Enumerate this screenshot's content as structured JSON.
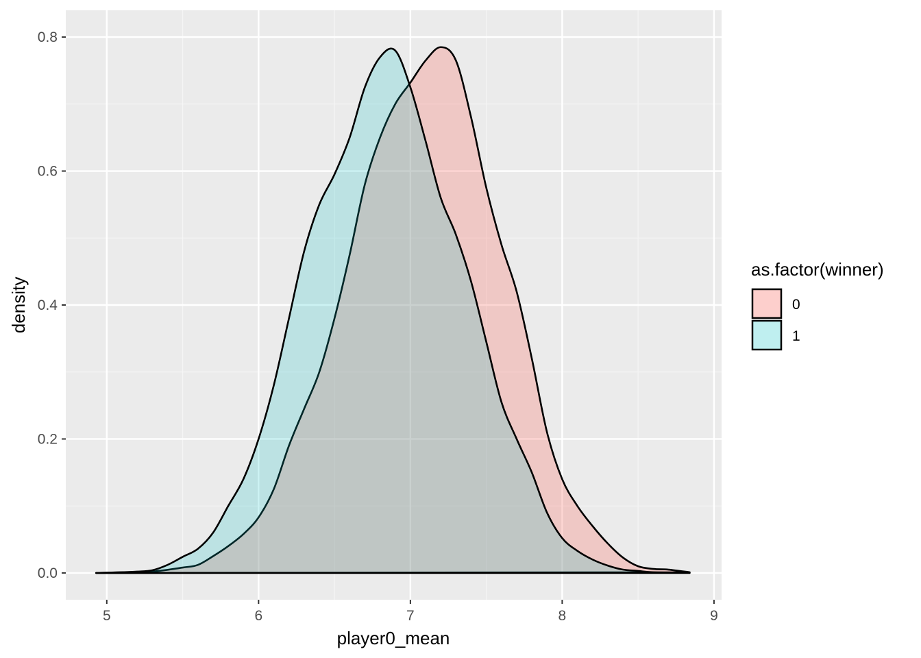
{
  "chart_data": {
    "type": "area",
    "xlabel": "player0_mean",
    "ylabel": "density",
    "xlim": [
      4.73,
      9.05
    ],
    "ylim": [
      -0.04,
      0.84
    ],
    "x_ticks": [
      5,
      6,
      7,
      8,
      9
    ],
    "x_tick_labels": [
      "5",
      "6",
      "7",
      "8",
      "9"
    ],
    "y_ticks": [
      0.0,
      0.2,
      0.4,
      0.6,
      0.8
    ],
    "y_tick_labels": [
      "0.0",
      "0.2",
      "0.4",
      "0.6",
      "0.8"
    ],
    "grid": true,
    "legend": {
      "title": "as.factor(winner)",
      "position": "right"
    },
    "series": [
      {
        "name": "0",
        "fill": "#F8766D",
        "fill_opacity": 0.3,
        "points": [
          [
            4.93,
            0.0
          ],
          [
            5.1,
            0.001
          ],
          [
            5.3,
            0.002
          ],
          [
            5.5,
            0.008
          ],
          [
            5.6,
            0.012
          ],
          [
            5.7,
            0.025
          ],
          [
            5.8,
            0.04
          ],
          [
            5.9,
            0.058
          ],
          [
            6.0,
            0.083
          ],
          [
            6.1,
            0.125
          ],
          [
            6.2,
            0.19
          ],
          [
            6.3,
            0.245
          ],
          [
            6.4,
            0.3
          ],
          [
            6.5,
            0.38
          ],
          [
            6.6,
            0.475
          ],
          [
            6.7,
            0.58
          ],
          [
            6.8,
            0.65
          ],
          [
            6.9,
            0.7
          ],
          [
            7.0,
            0.732
          ],
          [
            7.1,
            0.765
          ],
          [
            7.2,
            0.785
          ],
          [
            7.3,
            0.765
          ],
          [
            7.4,
            0.68
          ],
          [
            7.5,
            0.575
          ],
          [
            7.6,
            0.49
          ],
          [
            7.7,
            0.42
          ],
          [
            7.8,
            0.32
          ],
          [
            7.9,
            0.21
          ],
          [
            8.0,
            0.14
          ],
          [
            8.1,
            0.1
          ],
          [
            8.2,
            0.07
          ],
          [
            8.3,
            0.044
          ],
          [
            8.4,
            0.023
          ],
          [
            8.5,
            0.01
          ],
          [
            8.6,
            0.006
          ],
          [
            8.7,
            0.005
          ],
          [
            8.84,
            0.001
          ]
        ]
      },
      {
        "name": "1",
        "fill": "#00BFC4",
        "fill_opacity": 0.2,
        "points": [
          [
            4.93,
            0.0
          ],
          [
            5.1,
            0.001
          ],
          [
            5.2,
            0.002
          ],
          [
            5.3,
            0.004
          ],
          [
            5.4,
            0.012
          ],
          [
            5.5,
            0.024
          ],
          [
            5.6,
            0.036
          ],
          [
            5.7,
            0.06
          ],
          [
            5.8,
            0.1
          ],
          [
            5.9,
            0.14
          ],
          [
            6.0,
            0.2
          ],
          [
            6.1,
            0.28
          ],
          [
            6.2,
            0.38
          ],
          [
            6.3,
            0.48
          ],
          [
            6.4,
            0.55
          ],
          [
            6.5,
            0.595
          ],
          [
            6.6,
            0.65
          ],
          [
            6.7,
            0.725
          ],
          [
            6.8,
            0.77
          ],
          [
            6.9,
            0.78
          ],
          [
            7.0,
            0.725
          ],
          [
            7.1,
            0.645
          ],
          [
            7.2,
            0.56
          ],
          [
            7.3,
            0.505
          ],
          [
            7.4,
            0.435
          ],
          [
            7.5,
            0.345
          ],
          [
            7.6,
            0.255
          ],
          [
            7.7,
            0.2
          ],
          [
            7.8,
            0.15
          ],
          [
            7.9,
            0.09
          ],
          [
            8.0,
            0.052
          ],
          [
            8.1,
            0.033
          ],
          [
            8.2,
            0.02
          ],
          [
            8.3,
            0.011
          ],
          [
            8.4,
            0.005
          ],
          [
            8.5,
            0.003
          ],
          [
            8.6,
            0.001
          ],
          [
            8.84,
            0.0
          ]
        ]
      }
    ]
  },
  "colors": {
    "panel_background": "#EBEBEB",
    "grid_major": "#FFFFFF",
    "grid_minor": "#F5F5F5",
    "outline": "#000000"
  }
}
